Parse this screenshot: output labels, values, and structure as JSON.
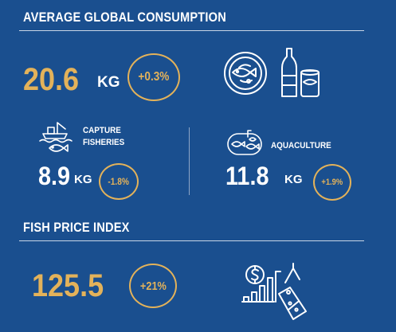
{
  "consumption": {
    "heading": "AVERAGE GLOBAL CONSUMPTION",
    "value": "20.6",
    "unit": "KG",
    "change": "+0.3%",
    "icon": "seafood-plate-bottle-can-icon"
  },
  "capture": {
    "label_line1": "CAPTURE",
    "label_line2": "FISHERIES",
    "value": "8.9",
    "unit": "KG",
    "change": "-1.8%",
    "icon": "fishing-boat-icon"
  },
  "aquaculture": {
    "label": "AQUACULTURE",
    "value": "11.8",
    "unit": "KG",
    "change": "+1.9%",
    "icon": "fish-tank-icon"
  },
  "price": {
    "heading": "FISH PRICE INDEX",
    "value": "125.5",
    "change": "+21%",
    "icon": "price-tag-chart-icon"
  },
  "colors": {
    "background": "#1a4f8f",
    "accent": "#e3b25a",
    "text": "#ffffff"
  }
}
